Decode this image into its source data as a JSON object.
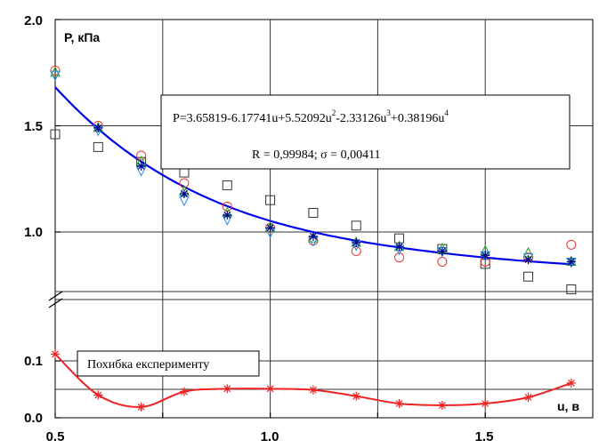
{
  "chart_data": {
    "type": "scatter",
    "xlabel": "u, в",
    "ylabel": "P, кПа",
    "xlim": [
      0.5,
      1.75
    ],
    "x_ticks": [
      "0.5",
      "1.0",
      "1.5"
    ],
    "upper_panel": {
      "ylim": [
        0.72,
        2.0
      ],
      "y_ticks": [
        "1.0",
        "1.5",
        "2.0"
      ],
      "annotation_line1_prefix": "P=3.65819-6.17741u+5.52092u",
      "annotation_sup1": "2",
      "annotation_mid1": "-2.33126u",
      "annotation_sup2": "3",
      "annotation_mid2": "+0.38196u",
      "annotation_sup3": "4",
      "annotation_line2": "R = 0,99984; σ = 0,00411",
      "fit": {
        "name": "P=3.65819-6.17741u+5.52092u²-2.33126u³+0.38196u⁴",
        "coefficients": [
          3.65819,
          -6.17741,
          5.52092,
          -2.33126,
          0.38196
        ],
        "color": "#0000ee"
      },
      "series": [
        {
          "marker": "square",
          "color": "#333333",
          "x": [
            0.5,
            0.6,
            0.7,
            0.8,
            0.9,
            1.0,
            1.1,
            1.2,
            1.3,
            1.4,
            1.5,
            1.6,
            1.7
          ],
          "y": [
            1.46,
            1.4,
            1.33,
            1.28,
            1.22,
            1.15,
            1.09,
            1.03,
            0.97,
            0.92,
            0.85,
            0.79,
            0.73
          ]
        },
        {
          "marker": "circle",
          "color": "#ee3333",
          "x": [
            0.5,
            0.6,
            0.7,
            0.8,
            0.9,
            1.0,
            1.1,
            1.2,
            1.3,
            1.4,
            1.5,
            1.6,
            1.7
          ],
          "y": [
            1.76,
            1.5,
            1.36,
            1.23,
            1.12,
            1.02,
            0.96,
            0.91,
            0.88,
            0.86,
            0.86,
            0.88,
            0.94
          ]
        },
        {
          "marker": "triangle-up",
          "color": "#22aa22",
          "x": [
            0.5,
            0.6,
            0.7,
            0.8,
            0.9,
            1.0,
            1.1,
            1.2,
            1.3,
            1.4,
            1.5,
            1.6,
            1.7
          ],
          "y": [
            1.75,
            1.49,
            1.33,
            1.19,
            1.09,
            1.02,
            0.97,
            0.95,
            0.93,
            0.92,
            0.91,
            0.9,
            0.86
          ]
        },
        {
          "marker": "triangle-down",
          "color": "#2288ee",
          "x": [
            0.5,
            0.6,
            0.7,
            0.8,
            0.9,
            1.0,
            1.1,
            1.2,
            1.3,
            1.4,
            1.5,
            1.6,
            1.7
          ],
          "y": [
            1.74,
            1.48,
            1.29,
            1.15,
            1.06,
            1.0,
            0.96,
            0.94,
            0.92,
            0.91,
            0.89,
            0.88,
            0.86
          ]
        },
        {
          "marker": "star",
          "color": "#000088",
          "x": [
            0.6,
            0.7,
            0.8,
            0.9,
            1.0,
            1.1,
            1.2,
            1.3,
            1.4,
            1.5,
            1.6,
            1.7
          ],
          "y": [
            1.49,
            1.31,
            1.18,
            1.08,
            1.02,
            0.98,
            0.95,
            0.93,
            0.91,
            0.89,
            0.87,
            0.86
          ]
        }
      ]
    },
    "lower_panel": {
      "ylim": [
        0.0,
        0.155
      ],
      "y_ticks": [
        "0.0",
        "0.1"
      ],
      "legend_label": "Похибка експерименту",
      "series": {
        "name": "Похибка експерименту",
        "marker": "asterisk",
        "color": "#ee2222",
        "x": [
          0.5,
          0.6,
          0.7,
          0.8,
          0.9,
          1.0,
          1.1,
          1.2,
          1.3,
          1.4,
          1.5,
          1.6,
          1.7
        ],
        "y": [
          0.112,
          0.04,
          0.019,
          0.046,
          0.051,
          0.051,
          0.049,
          0.038,
          0.025,
          0.022,
          0.025,
          0.036,
          0.061
        ]
      }
    },
    "grid": true
  }
}
